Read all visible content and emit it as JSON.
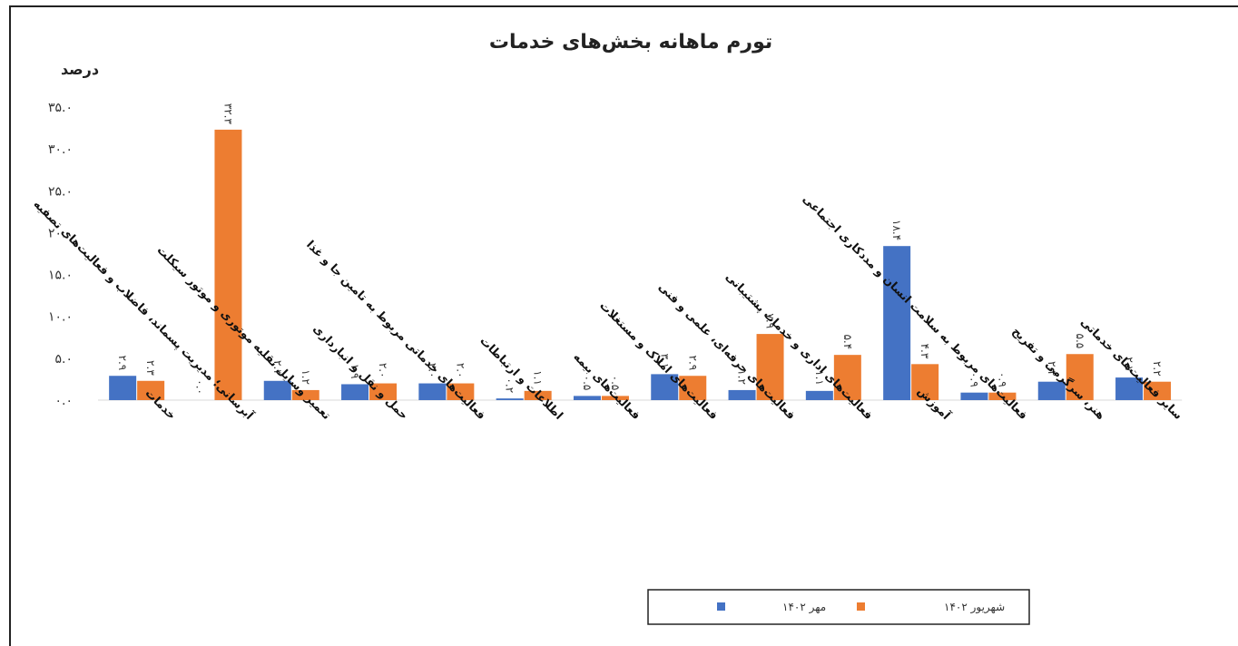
{
  "chart_data": {
    "type": "bar",
    "title": "تورم ماهانه بخش‌های خدمات",
    "ylabel": "درصد",
    "ylim": [
      0,
      35
    ],
    "yticks": [
      "۰.۰",
      "۵.۰",
      "۱۰.۰",
      "۱۵.۰",
      "۲۰.۰",
      "۲۵.۰",
      "۳۰.۰",
      "۳۵.۰"
    ],
    "categories": [
      "خدمات",
      "آبرسانی؛ مدیریت پسماند، فاضلاب و فعالیت‌های تصفیه",
      "تعمیر وسایل نقلیه موتوری و موتور سیکلت",
      "حمل و نقل و انبارداری",
      "فعالیت‌های خدماتی مربوط به تامین جا و غذا",
      "اطلاعات و ارتباطات",
      "فعالیت‌های بیمه",
      "فعالیت‌های املاک و مستغلات",
      "فعالیت‌های حرفه‌ای، علمی و فنی",
      "فعالیت‌های اداری و خدمات پشتیبانی",
      "آموزش",
      "فعالیت‌های مربوط به سلامت انسان و مددکاری اجتماعی",
      "هنر، سرگرمی و تفریح",
      "سایر فعالیت‌های خدماتی"
    ],
    "series": [
      {
        "name": "مهر ۱۴۰۲",
        "color": "#4472C4",
        "values": [
          2.9,
          0.0,
          2.3,
          1.9,
          2.0,
          0.2,
          0.5,
          3.1,
          1.2,
          1.1,
          18.4,
          0.9,
          2.2,
          2.7
        ],
        "labels": [
          "۲.۹",
          "۰.۰",
          "۲.۳",
          "۱.۹",
          "۲.۰",
          "۰.۲",
          "۰.۵",
          "۳.۱",
          "۱.۲",
          "۱.۱",
          "۱۸.۴",
          "۰.۹",
          "۲.۲",
          "۲.۷"
        ]
      },
      {
        "name": "شهریور ۱۴۰۲",
        "color": "#ED7D31",
        "values": [
          2.3,
          32.3,
          1.2,
          2.0,
          2.0,
          1.1,
          0.5,
          2.9,
          7.9,
          5.4,
          4.3,
          0.9,
          5.5,
          2.2
        ],
        "labels": [
          "۲.۳",
          "۳۲.۳",
          "۱.۲",
          "۲.۰",
          "۲.۰",
          "۱.۱",
          "۰.۵",
          "۲.۹",
          "۷.۹",
          "۵.۴",
          "۴.۳",
          "۰.۹",
          "۵.۵",
          "۲.۲"
        ]
      }
    ],
    "grid": false,
    "legend_position": "bottom"
  }
}
